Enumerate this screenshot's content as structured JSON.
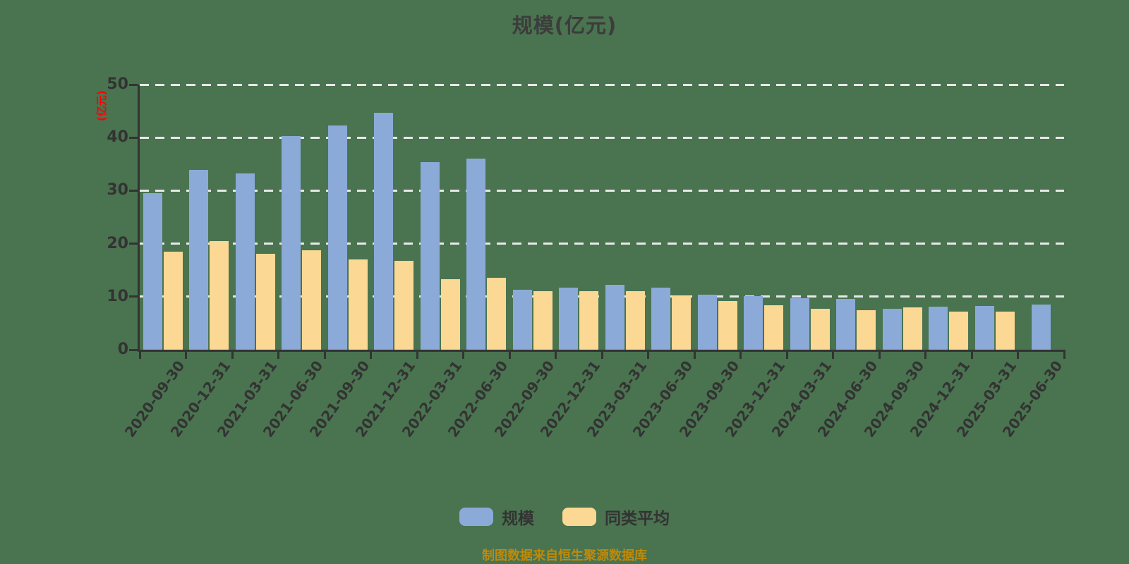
{
  "title": "规模(亿元)",
  "y_axis": {
    "title": "(亿元)",
    "title_color": "#FF0000",
    "ticks": [
      0,
      10,
      20,
      30,
      40,
      50
    ],
    "max": 50
  },
  "legend": {
    "items": [
      {
        "label": "规模",
        "color": "#8BAAD8"
      },
      {
        "label": "同类平均",
        "color": "#FBD893"
      }
    ]
  },
  "footer": {
    "source_note": "制图数据来自恒生聚源数据库",
    "source_note_color": "#BE8A0A"
  },
  "colors": {
    "background": "#4A7350",
    "axis": "#333333",
    "gridline": "#E8E8E8",
    "title_text": "#3C3C3C"
  },
  "chart_data": {
    "type": "bar",
    "title": "规模(亿元)",
    "ylabel": "(亿元)",
    "ylim": [
      0,
      50
    ],
    "grid": "horizontal-dashed-white",
    "legend_position": "bottom",
    "categories": [
      "2020-09-30",
      "2020-12-31",
      "2021-03-31",
      "2021-06-30",
      "2021-09-30",
      "2021-12-31",
      "2022-03-31",
      "2022-06-30",
      "2022-09-30",
      "2022-12-31",
      "2023-03-31",
      "2023-06-30",
      "2023-09-30",
      "2023-12-31",
      "2024-03-31",
      "2024-06-30",
      "2024-09-30",
      "2024-12-31",
      "2025-03-31",
      "2025-06-30"
    ],
    "series": [
      {
        "name": "规模",
        "color": "#8BAAD8",
        "values": [
          29.5,
          33.9,
          33.2,
          40.3,
          42.3,
          44.7,
          35.4,
          36.1,
          11.3,
          11.7,
          12.2,
          11.7,
          10.4,
          10.1,
          9.7,
          9.6,
          7.7,
          8.1,
          8.2,
          8.5
        ]
      },
      {
        "name": "同类平均",
        "color": "#FBD893",
        "values": [
          18.5,
          20.5,
          18.1,
          18.8,
          17.0,
          16.8,
          13.3,
          13.5,
          11.1,
          11.1,
          11.0,
          10.2,
          9.2,
          8.4,
          7.7,
          7.5,
          8.0,
          7.2,
          7.2,
          null
        ]
      }
    ]
  }
}
